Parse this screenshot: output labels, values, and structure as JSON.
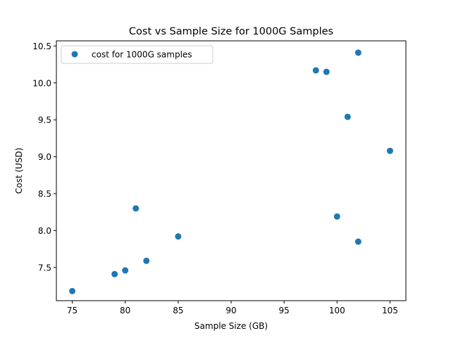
{
  "chart_data": {
    "type": "scatter",
    "title": "Cost vs Sample Size for 1000G Samples",
    "xlabel": "Sample Size (GB)",
    "ylabel": "Cost (USD)",
    "xlim": [
      73.5,
      106.5
    ],
    "ylim": [
      7.05,
      10.57
    ],
    "xticks": [
      75,
      80,
      85,
      90,
      95,
      100,
      105
    ],
    "yticks": [
      7.5,
      8.0,
      8.5,
      9.0,
      9.5,
      10.0,
      10.5
    ],
    "grid": false,
    "legend_position": "top-left",
    "series": [
      {
        "name": "cost for 1000G samples",
        "color": "#1f77b4",
        "marker": "circle",
        "points": [
          {
            "x": 75,
            "y": 7.18
          },
          {
            "x": 79,
            "y": 7.41
          },
          {
            "x": 80,
            "y": 7.46
          },
          {
            "x": 81,
            "y": 8.3
          },
          {
            "x": 82,
            "y": 7.59
          },
          {
            "x": 85,
            "y": 7.92
          },
          {
            "x": 98,
            "y": 10.17
          },
          {
            "x": 99,
            "y": 10.15
          },
          {
            "x": 100,
            "y": 8.19
          },
          {
            "x": 101,
            "y": 9.54
          },
          {
            "x": 102,
            "y": 10.41
          },
          {
            "x": 102,
            "y": 7.85
          },
          {
            "x": 105,
            "y": 9.08
          }
        ]
      }
    ]
  }
}
